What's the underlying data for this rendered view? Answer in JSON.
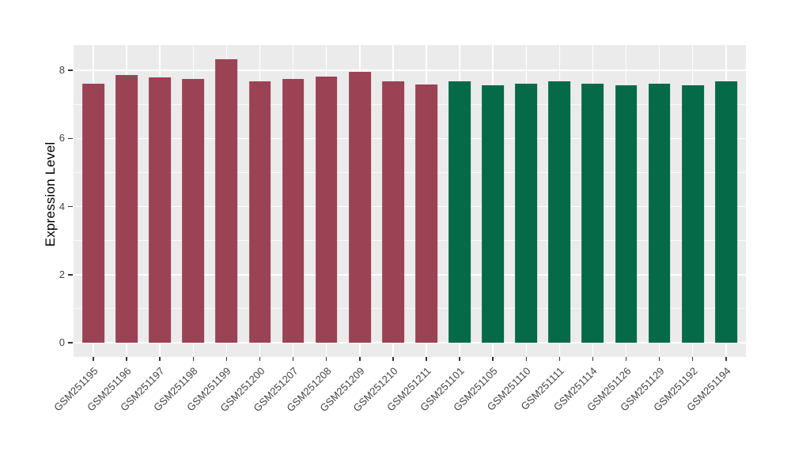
{
  "colors": {
    "figure_bg": "#FFFFFF",
    "panel_bg": "#EBEBEB",
    "grid": "#FFFFFF",
    "bar_group_1": "#9B4354",
    "bar_group_2": "#046A47",
    "axis_text": "#444444",
    "tick_mark": "#333333",
    "axis_title": "#000000"
  },
  "chart_data": {
    "type": "bar",
    "title": "",
    "xlabel": "",
    "ylabel": "Expression Level",
    "legend": false,
    "grid": "white major and minor horizontal gridlines plus vertical category gridlines on grey panel",
    "yaxis": {
      "ticks": [
        0,
        2,
        4,
        6,
        8
      ],
      "minor_gridlines": [
        1,
        3,
        5,
        7
      ],
      "range": [
        0,
        8.75
      ]
    },
    "x_tick_label_angle": 45,
    "series": [
      {
        "name": "group-1-maroon",
        "color": "#9B4354",
        "categories": [
          "GSM251195",
          "GSM251196",
          "GSM251197",
          "GSM251198",
          "GSM251199",
          "GSM251200",
          "GSM251207",
          "GSM251208",
          "GSM251209",
          "GSM251210",
          "GSM251211"
        ],
        "values": [
          7.6,
          7.86,
          7.79,
          7.74,
          8.34,
          7.69,
          7.75,
          7.83,
          7.97,
          7.69,
          7.59
        ]
      },
      {
        "name": "group-2-green",
        "color": "#046A47",
        "categories": [
          "GSM251101",
          "GSM251105",
          "GSM251110",
          "GSM251111",
          "GSM251114",
          "GSM251126",
          "GSM251129",
          "GSM251192",
          "GSM251194"
        ],
        "values": [
          7.68,
          7.56,
          7.6,
          7.68,
          7.61,
          7.57,
          7.6,
          7.57,
          7.68
        ]
      }
    ]
  }
}
